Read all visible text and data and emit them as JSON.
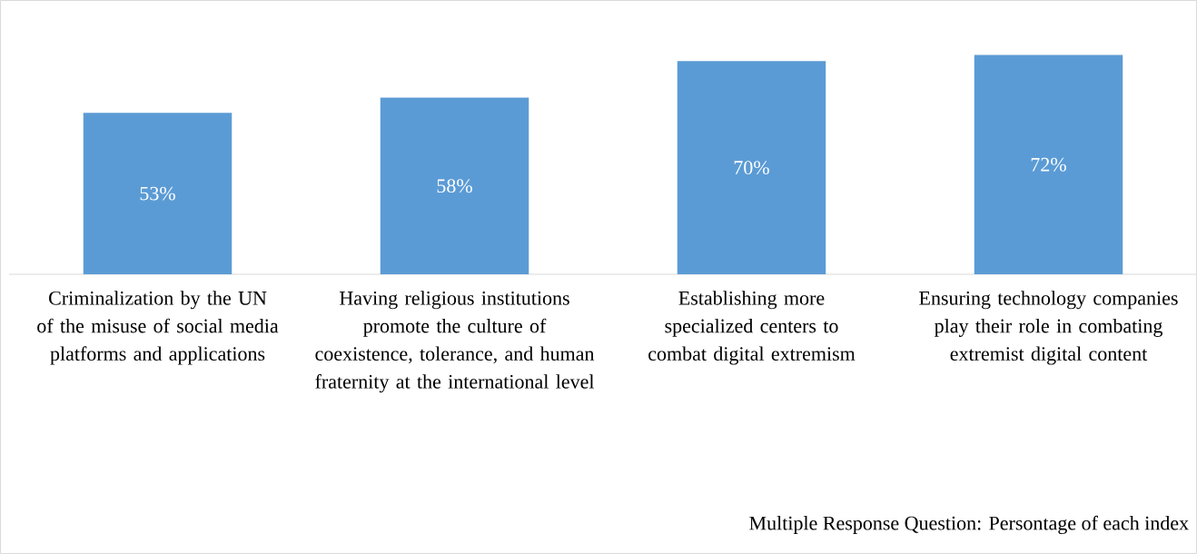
{
  "chart_data": {
    "type": "bar",
    "categories": [
      "Criminalization by the UN of the misuse of social media platforms and applications",
      "Having religious institutions promote the culture of coexistence, tolerance, and human fraternity at the international level",
      "Establishing more specialized centers to combat digital extremism",
      "Ensuring technology companies play their role in combating extremist digital content"
    ],
    "values": [
      53,
      58,
      70,
      72
    ],
    "value_labels": [
      "53%",
      "58%",
      "70%",
      "72%"
    ],
    "color": "#5b9bd5",
    "annotations": [
      "Multiple Response Question: Persontage of each index"
    ]
  }
}
